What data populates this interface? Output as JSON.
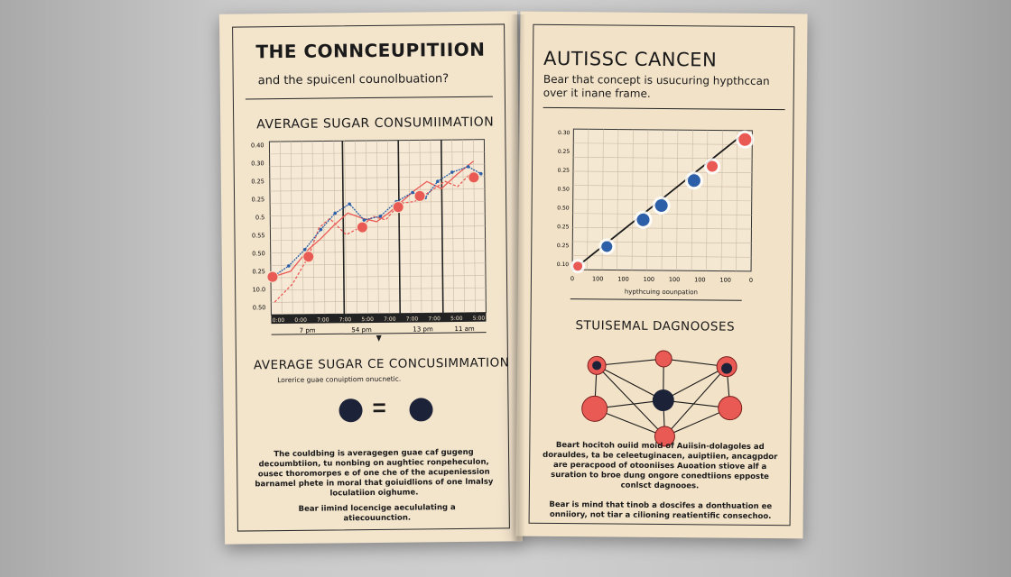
{
  "left": {
    "title": "THE CONNCEUPITIION",
    "subtitle": "and the spuicenl counolbuation?",
    "chart_heading": "AVERAGE SUGAR CONSUMIIMATION",
    "y_ticks": [
      "0.40",
      "0.30",
      "0.25",
      "0.25",
      "0.5",
      "0.55",
      "0.50",
      "0.25",
      "10.0",
      "0.50"
    ],
    "x_ticks": [
      "0:00",
      "0:00",
      "7:00",
      "7:00",
      "5:00",
      "7:00",
      "7:00",
      "7:00",
      "5:00",
      "5:00"
    ],
    "x_sub_ticks": [
      "7 pm",
      "54 pm",
      "13 pm",
      "11 am"
    ],
    "section_heading": "AVERAGE SUGAR CE CONCUSIMMATION",
    "section_caption": "Lorerice guae conuiptiom onucnetic.",
    "equation_symbol": "=",
    "paragraph": "The couldbing is averagegen guae caf gugeng decoumbtiion, tu nonbing on aughtiec ronpeheculon, ousec thoromorpes e of one che of the acupeniession barnamel phete in moral that goiuidlions of one lmalsy loculatiion oighume.",
    "footnote": "Bear iimind locencige aecululating a atiecouunction."
  },
  "right": {
    "title": "AUTISSC CANCEN",
    "subtitle": "Bear that concept is usucuring hypthccan over it inane frame.",
    "y_ticks": [
      "0.30",
      "0.25",
      "0.25",
      "0.50",
      "0.50",
      "0.25",
      "0.25",
      "0.10"
    ],
    "x_ticks": [
      "0",
      "100",
      "100",
      "100",
      "100",
      "100",
      "100",
      "0"
    ],
    "x_label": "hypthcuing oounpation",
    "section_heading": "STUISEMAL DAGNOOSES",
    "paragraph": "Beart hocitoh ouiid moid of Auiisin-dolagoles ad dorauldes, ta be celeetuginacen, auiptiien, ancagpdor are peracpood of otooniises Auoation stiove alf a suration to broe dung ongore conedtiions epposte conlsct dagnooes.",
    "footnote": "Bear is mind that tinob a doscifes a donthuation ee onniiory, not tiar a cilioning reatientific consechoo."
  },
  "colors": {
    "paper": "#f3e4cc",
    "ink": "#1a1a1a",
    "red": "#ea5a55",
    "blue": "#2c5fa8",
    "navy": "#1c2237"
  }
}
